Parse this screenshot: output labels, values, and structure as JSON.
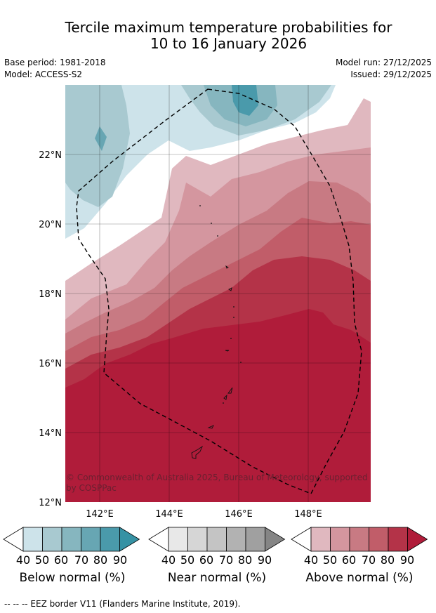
{
  "title_line1": "Tercile maximum temperature probabilities for",
  "title_line2": "10 to 16 January 2026",
  "base_period": "Base period: 1981-2018",
  "model": "Model: ACCESS-S2",
  "model_run": "Model run: 27/12/2025",
  "issued": "Issued: 29/12/2025",
  "lat_labels": [
    "22°N",
    "20°N",
    "18°N",
    "16°N",
    "14°N",
    "12°N"
  ],
  "lon_labels": [
    "142°E",
    "144°E",
    "146°E",
    "148°E"
  ],
  "copyright_line1": "© Commonwealth of Australia 2025, Bureau of Meteorology, supported",
  "copyright_line2": "by COSPPac",
  "legend": {
    "ticks": [
      "40",
      "50",
      "60",
      "70",
      "80",
      "90"
    ],
    "below": {
      "title": "Below normal (%)",
      "colors": [
        "#cde3ea",
        "#a8c9d0",
        "#86b6bf",
        "#67a6b3",
        "#4a9aab",
        "#3692a4"
      ]
    },
    "near": {
      "title": "Near normal (%)",
      "colors": [
        "#e8e8e8",
        "#d6d6d6",
        "#c4c4c4",
        "#b2b2b2",
        "#a0a0a0",
        "#858585"
      ]
    },
    "above": {
      "title": "Above normal (%)",
      "colors": [
        "#e0b8bf",
        "#d4969f",
        "#c87a83",
        "#c15d69",
        "#b43348",
        "#b01c3a"
      ]
    }
  },
  "footer": "--  --  -- EEZ border V11 (Flanders Marine Institute, 2019)."
}
